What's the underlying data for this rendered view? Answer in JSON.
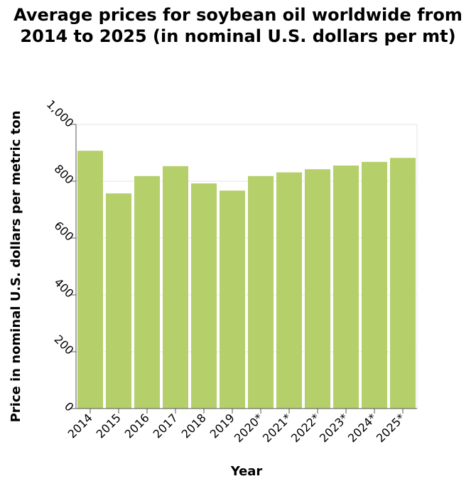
{
  "chart_data": {
    "type": "bar",
    "title": "Average prices for soybean oil worldwide from 2014 to 2025 (in nominal U.S. dollars per mt)",
    "xlabel": "Year",
    "ylabel": "Price in nominal U.S. dollars per metric ton",
    "categories": [
      "2014",
      "2015",
      "2016",
      "2017",
      "2018",
      "2019",
      "2020*",
      "2021*",
      "2022*",
      "2023*",
      "2024*",
      "2025*"
    ],
    "values": [
      907,
      757,
      818,
      853,
      792,
      767,
      818,
      831,
      842,
      855,
      868,
      882
    ],
    "ylim": [
      0,
      1000
    ],
    "yticks": [
      0,
      200,
      400,
      600,
      800,
      1000
    ],
    "ytick_labels": [
      "0",
      "200",
      "400",
      "600",
      "800",
      "1,000"
    ],
    "grid": true,
    "bar_color": "#b5cf6b",
    "grid_color": "#e6e6e6",
    "axis_color": "#555555"
  }
}
